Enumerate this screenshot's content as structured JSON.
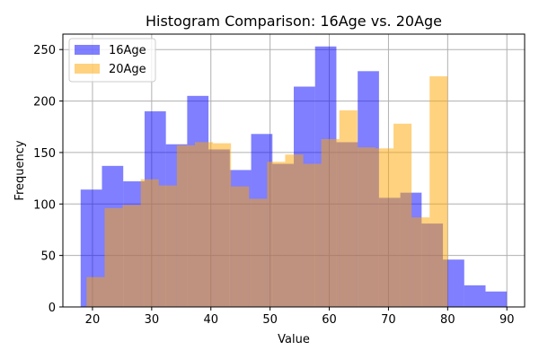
{
  "chart_data": {
    "type": "histogram",
    "title": "Histogram Comparison: 16Age vs. 20Age",
    "xlabel": "Value",
    "ylabel": "Frequency",
    "xlim": [
      15,
      93
    ],
    "ylim": [
      0,
      265
    ],
    "xticks": [
      20,
      30,
      40,
      50,
      60,
      70,
      80,
      90
    ],
    "yticks": [
      0,
      50,
      100,
      150,
      200,
      250
    ],
    "grid": true,
    "legend_position": "top-left",
    "series": [
      {
        "name": "16Age",
        "color": "#0000ff",
        "alpha": 0.5,
        "bin_edges": [
          18.0,
          21.6,
          25.2,
          28.8,
          32.4,
          36.0,
          39.6,
          43.2,
          46.8,
          50.4,
          54.0,
          57.6,
          61.2,
          64.8,
          68.4,
          72.0,
          75.6,
          79.2,
          82.8,
          86.4,
          90.0
        ],
        "counts": [
          114,
          137,
          122,
          190,
          158,
          205,
          153,
          133,
          168,
          139,
          214,
          253,
          160,
          229,
          106,
          111,
          81,
          46,
          21,
          15
        ]
      },
      {
        "name": "20Age",
        "color": "#ffa500",
        "alpha": 0.5,
        "bin_edges": [
          19.0,
          22.05,
          25.1,
          28.15,
          31.2,
          34.25,
          37.3,
          40.35,
          43.4,
          46.45,
          49.5,
          52.55,
          55.6,
          58.65,
          61.7,
          64.75,
          67.8,
          70.85,
          73.9,
          76.95,
          80.0
        ],
        "counts": [
          29,
          96,
          99,
          124,
          118,
          157,
          160,
          159,
          117,
          105,
          141,
          148,
          139,
          163,
          191,
          155,
          154,
          178,
          87,
          224
        ]
      }
    ]
  }
}
